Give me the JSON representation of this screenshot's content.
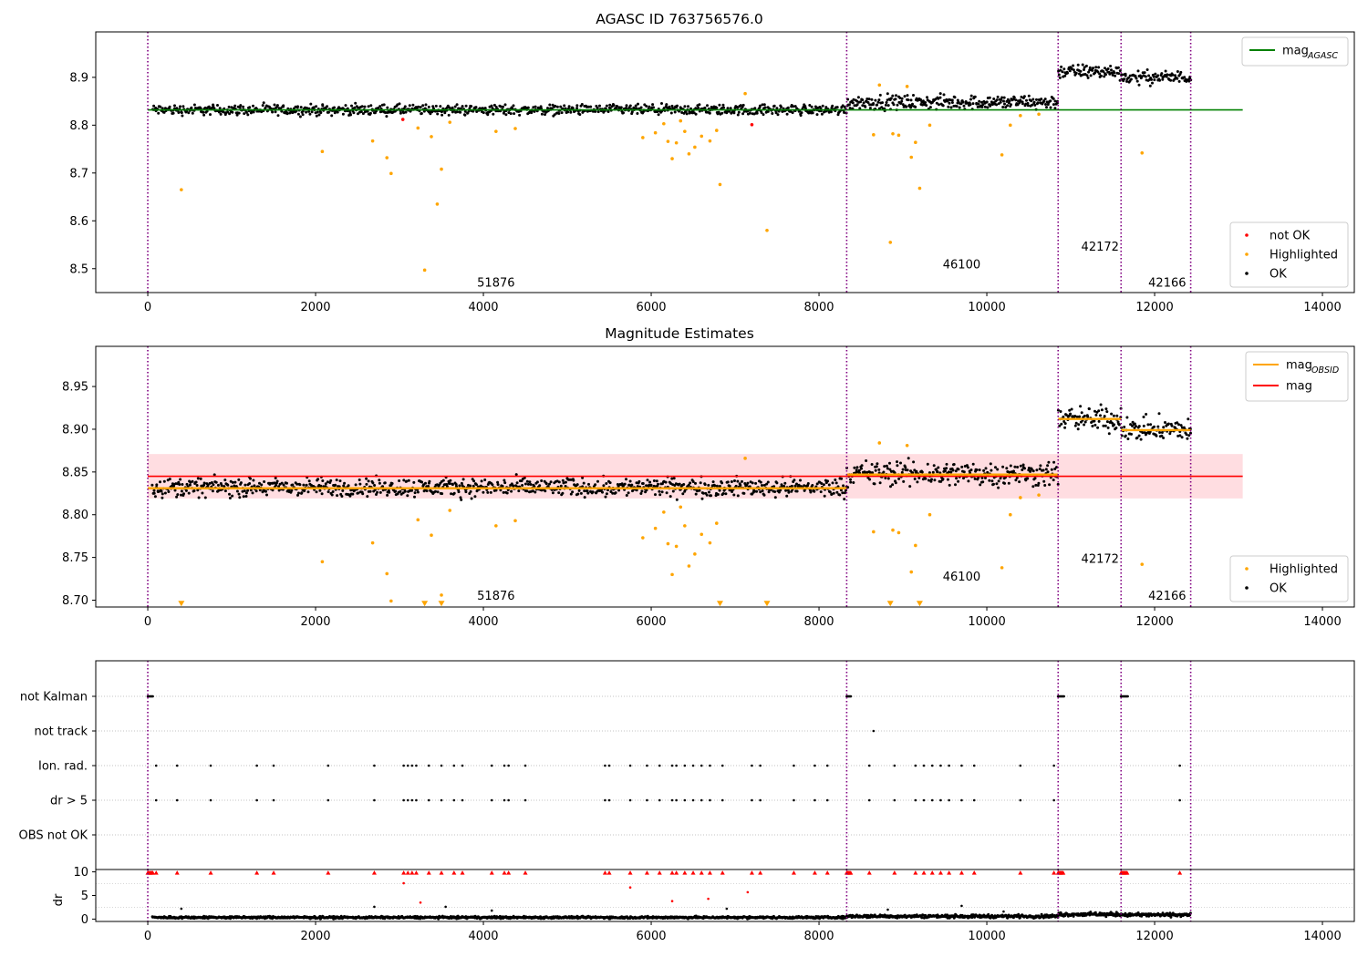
{
  "chart_data": [
    {
      "type": "scatter",
      "title": "AGASC ID 763756576.0",
      "xlim": [
        -620,
        14380
      ],
      "ylim": [
        8.45,
        8.995
      ],
      "xticks": [
        0,
        2000,
        4000,
        6000,
        8000,
        10000,
        12000,
        14000
      ],
      "yticks": [
        8.5,
        8.6,
        8.7,
        8.8,
        8.9
      ],
      "ytick_decimals": 1,
      "legend_lines": {
        "position": "top-right",
        "entries": [
          {
            "label": "mag",
            "sub": "AGASC",
            "color": "#008000"
          }
        ]
      },
      "legend_points": {
        "position": "bottom-right",
        "entries": [
          {
            "label": "not OK",
            "color": "#ff0000"
          },
          {
            "label": "Highlighted",
            "color": "#ffa500"
          },
          {
            "label": "OK",
            "color": "#000000"
          }
        ]
      },
      "reference_lines": [
        {
          "name": "mag_agasc",
          "y": 8.832,
          "x0": 0,
          "x1": 13050,
          "color": "#008000"
        }
      ],
      "obsid_boundaries": [
        0,
        8330,
        10850,
        11600,
        12430
      ],
      "obsid_labels": [
        {
          "text": "51876",
          "x": 4150,
          "y": 8.47
        },
        {
          "text": "46100",
          "x": 9700,
          "y": 8.508
        },
        {
          "text": "42172",
          "x": 11350,
          "y": 8.545
        },
        {
          "text": "42166",
          "x": 12150,
          "y": 8.47
        }
      ],
      "series": [
        {
          "name": "OK",
          "color": "#000000",
          "segments": [
            {
              "x0": 50,
              "x1": 8330,
              "base": 8.832,
              "spread": 0.016
            },
            {
              "x0": 8330,
              "x1": 10850,
              "base": 8.848,
              "spread": 0.022
            },
            {
              "x0": 10850,
              "x1": 11600,
              "base": 8.912,
              "spread": 0.022
            },
            {
              "x0": 11600,
              "x1": 12430,
              "base": 8.9,
              "spread": 0.02
            }
          ]
        },
        {
          "name": "Highlighted",
          "color": "#ffa500",
          "points": [
            [
              400,
              8.665
            ],
            [
              2080,
              8.745
            ],
            [
              2680,
              8.767
            ],
            [
              2850,
              8.732
            ],
            [
              2900,
              8.699
            ],
            [
              3220,
              8.794
            ],
            [
              3300,
              8.497
            ],
            [
              3380,
              8.776
            ],
            [
              3450,
              8.635
            ],
            [
              3500,
              8.708
            ],
            [
              3600,
              8.806
            ],
            [
              4150,
              8.787
            ],
            [
              4380,
              8.793
            ],
            [
              5900,
              8.774
            ],
            [
              6050,
              8.784
            ],
            [
              6150,
              8.803
            ],
            [
              6200,
              8.766
            ],
            [
              6250,
              8.73
            ],
            [
              6300,
              8.763
            ],
            [
              6350,
              8.809
            ],
            [
              6400,
              8.787
            ],
            [
              6450,
              8.74
            ],
            [
              6520,
              8.754
            ],
            [
              6600,
              8.777
            ],
            [
              6700,
              8.767
            ],
            [
              6780,
              8.789
            ],
            [
              6820,
              8.676
            ],
            [
              7120,
              8.866
            ],
            [
              7380,
              8.58
            ],
            [
              8650,
              8.78
            ],
            [
              8720,
              8.884
            ],
            [
              8850,
              8.555
            ],
            [
              8880,
              8.782
            ],
            [
              8950,
              8.779
            ],
            [
              9050,
              8.881
            ],
            [
              9100,
              8.733
            ],
            [
              9200,
              8.668
            ],
            [
              9150,
              8.764
            ],
            [
              9320,
              8.8
            ],
            [
              10180,
              8.738
            ],
            [
              10280,
              8.8
            ],
            [
              10400,
              8.82
            ],
            [
              10620,
              8.823
            ],
            [
              11850,
              8.742
            ]
          ]
        },
        {
          "name": "not OK",
          "color": "#ff0000",
          "points": [
            [
              3040,
              8.812
            ],
            [
              7200,
              8.801
            ]
          ]
        }
      ]
    },
    {
      "type": "scatter",
      "title": "Magnitude Estimates",
      "xlim": [
        -620,
        14380
      ],
      "ylim": [
        8.692,
        8.997
      ],
      "xticks": [
        0,
        2000,
        4000,
        6000,
        8000,
        10000,
        12000,
        14000
      ],
      "yticks": [
        8.7,
        8.75,
        8.8,
        8.85,
        8.9,
        8.95
      ],
      "ytick_decimals": 2,
      "legend_lines": {
        "position": "top-right",
        "entries": [
          {
            "label": "mag",
            "sub": "OBSID",
            "color": "#ffa500"
          },
          {
            "label": "mag",
            "sub": "",
            "color": "#ff0000"
          }
        ]
      },
      "legend_points": {
        "position": "bottom-right",
        "entries": [
          {
            "label": "Highlighted",
            "color": "#ffa500"
          },
          {
            "label": "OK",
            "color": "#000000"
          }
        ]
      },
      "band": {
        "y0": 8.819,
        "y1": 8.871,
        "x0": 0,
        "x1": 13050,
        "color": "#ffdde1"
      },
      "reference_lines": [
        {
          "name": "mag",
          "y": 8.845,
          "x0": 0,
          "x1": 13050,
          "color": "#ff0000"
        }
      ],
      "segment_means": [
        {
          "x0": 0,
          "x1": 8330,
          "y": 8.831
        },
        {
          "x0": 8330,
          "x1": 10850,
          "y": 8.847
        },
        {
          "x0": 10850,
          "x1": 11600,
          "y": 8.912
        },
        {
          "x0": 11600,
          "x1": 12430,
          "y": 8.899
        }
      ],
      "obsid_boundaries": [
        0,
        8330,
        10850,
        11600,
        12430
      ],
      "obsid_labels": [
        {
          "text": "51876",
          "x": 4150,
          "y": 8.705
        },
        {
          "text": "46100",
          "x": 9700,
          "y": 8.727
        },
        {
          "text": "42172",
          "x": 11350,
          "y": 8.748
        },
        {
          "text": "42166",
          "x": 12150,
          "y": 8.705
        }
      ],
      "series": [
        {
          "name": "OK",
          "color": "#000000",
          "segments": [
            {
              "x0": 50,
              "x1": 8330,
              "base": 8.832,
              "spread": 0.016
            },
            {
              "x0": 8330,
              "x1": 10850,
              "base": 8.848,
              "spread": 0.022
            },
            {
              "x0": 10850,
              "x1": 11600,
              "base": 8.912,
              "spread": 0.022
            },
            {
              "x0": 11600,
              "x1": 12430,
              "base": 8.9,
              "spread": 0.02
            }
          ]
        },
        {
          "name": "Highlighted",
          "color": "#ffa500",
          "points": [
            [
              2080,
              8.745
            ],
            [
              2680,
              8.767
            ],
            [
              2850,
              8.731
            ],
            [
              2900,
              8.699
            ],
            [
              3220,
              8.794
            ],
            [
              3380,
              8.776
            ],
            [
              3500,
              8.706
            ],
            [
              3600,
              8.805
            ],
            [
              4150,
              8.787
            ],
            [
              4380,
              8.793
            ],
            [
              5900,
              8.773
            ],
            [
              6050,
              8.784
            ],
            [
              6150,
              8.803
            ],
            [
              6200,
              8.766
            ],
            [
              6250,
              8.73
            ],
            [
              6300,
              8.763
            ],
            [
              6350,
              8.809
            ],
            [
              6400,
              8.787
            ],
            [
              6450,
              8.74
            ],
            [
              6520,
              8.754
            ],
            [
              6600,
              8.777
            ],
            [
              6700,
              8.767
            ],
            [
              6780,
              8.79
            ],
            [
              7120,
              8.866
            ],
            [
              8650,
              8.78
            ],
            [
              8720,
              8.884
            ],
            [
              8880,
              8.782
            ],
            [
              8950,
              8.779
            ],
            [
              9050,
              8.881
            ],
            [
              9100,
              8.733
            ],
            [
              9150,
              8.764
            ],
            [
              9320,
              8.8
            ],
            [
              10180,
              8.738
            ],
            [
              10280,
              8.8
            ],
            [
              10400,
              8.82
            ],
            [
              10620,
              8.823
            ],
            [
              11850,
              8.742
            ]
          ]
        },
        {
          "name": "Highlighted (off-scale)",
          "color": "#ffa500",
          "marker": "triangle-down",
          "points": [
            [
              400,
              8.696
            ],
            [
              3300,
              8.696
            ],
            [
              3500,
              8.696
            ],
            [
              6820,
              8.696
            ],
            [
              7380,
              8.696
            ],
            [
              8850,
              8.696
            ],
            [
              9200,
              8.696
            ]
          ]
        }
      ]
    },
    {
      "type": "scatter",
      "title": "",
      "xlim": [
        -620,
        14380
      ],
      "categories": [
        "not Kalman",
        "not track",
        "Ion. rad.",
        "dr > 5",
        "OBS not OK"
      ],
      "obsid_boundaries": [
        0,
        8330,
        10850,
        11600,
        12430
      ],
      "flags": {
        "not Kalman": [
          [
            0,
            60
          ],
          [
            8330,
            8380
          ],
          [
            10850,
            10920
          ],
          [
            11600,
            11680
          ]
        ],
        "not track": [
          8650
        ],
        "Ion. rad.": [
          100,
          350,
          750,
          1300,
          1500,
          2150,
          2700,
          3050,
          3100,
          3150,
          3200,
          3350,
          3500,
          3650,
          3750,
          4100,
          4250,
          4300,
          4500,
          5450,
          5500,
          5750,
          5950,
          6100,
          6250,
          6300,
          6400,
          6500,
          6600,
          6700,
          6850,
          7200,
          7300,
          7700,
          7950,
          8100,
          8600,
          8900,
          9150,
          9250,
          9350,
          9450,
          9550,
          9700,
          9850,
          10400,
          10800,
          12300
        ],
        "dr > 5": [
          100,
          350,
          750,
          1300,
          1500,
          2150,
          2700,
          3050,
          3100,
          3150,
          3200,
          3350,
          3500,
          3650,
          3750,
          4100,
          4250,
          4300,
          4500,
          5450,
          5500,
          5750,
          5950,
          6100,
          6250,
          6300,
          6400,
          6500,
          6600,
          6700,
          6850,
          7200,
          7300,
          7700,
          7950,
          8100,
          8600,
          8900,
          9150,
          9250,
          9350,
          9450,
          9550,
          9700,
          9850,
          10400,
          10800,
          12300
        ],
        "OBS not OK": []
      }
    },
    {
      "type": "scatter",
      "title": "",
      "ylabel": "dr",
      "xlim": [
        -620,
        14380
      ],
      "ylim": [
        -0.5,
        10.5
      ],
      "xticks": [
        0,
        2000,
        4000,
        6000,
        8000,
        10000,
        12000,
        14000
      ],
      "yticks": [
        0,
        5,
        10
      ],
      "obsid_boundaries": [
        0,
        8330,
        10850,
        11600,
        12430
      ],
      "capped_value": 9.8,
      "series": [
        {
          "name": "OK",
          "color": "#000000",
          "segments": [
            {
              "x0": 50,
              "x1": 8330,
              "base": 0.35,
              "spread": 0.35
            },
            {
              "x0": 8330,
              "x1": 10850,
              "base": 0.6,
              "spread": 0.5
            },
            {
              "x0": 10850,
              "x1": 11600,
              "base": 1.0,
              "spread": 0.6
            },
            {
              "x0": 11600,
              "x1": 12430,
              "base": 0.9,
              "spread": 0.55
            }
          ]
        },
        {
          "name": "not OK",
          "color": "#ff0000",
          "points": [
            [
              3050,
              7.6
            ],
            [
              5750,
              6.7
            ],
            [
              7150,
              5.7
            ],
            [
              6250,
              3.8
            ],
            [
              6680,
              4.3
            ],
            [
              3250,
              3.5
            ]
          ]
        },
        {
          "name": "OK (outliers)",
          "color": "#000000",
          "points": [
            [
              400,
              2.2
            ],
            [
              2700,
              2.6
            ],
            [
              3550,
              2.6
            ],
            [
              4100,
              1.8
            ],
            [
              6900,
              2.2
            ],
            [
              8820,
              2.0
            ],
            [
              9700,
              2.8
            ],
            [
              10200,
              1.6
            ]
          ]
        }
      ]
    }
  ]
}
